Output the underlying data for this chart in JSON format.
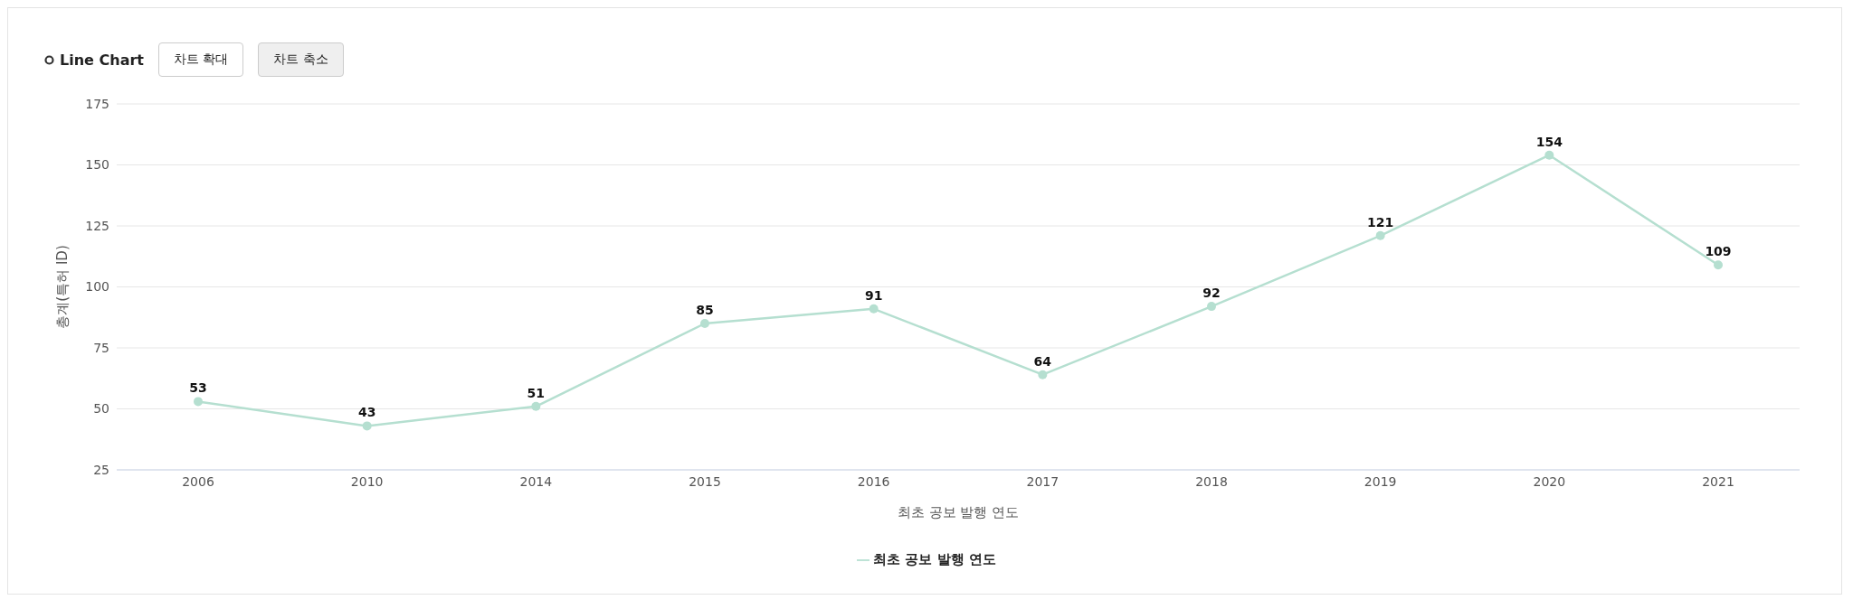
{
  "chart_data": {
    "type": "line",
    "title": "Line Chart",
    "annotations": [
      "차트 확대",
      "차트 축소"
    ],
    "xlabel": "최초 공보 발행 연도",
    "ylabel": "총계(특허 ID)",
    "categories": [
      "2006",
      "2010",
      "2014",
      "2015",
      "2016",
      "2017",
      "2018",
      "2019",
      "2020",
      "2021"
    ],
    "series": [
      {
        "name": "최초 공보 발행 연도",
        "color": "#b5dfd0",
        "values": [
          53,
          43,
          51,
          85,
          91,
          64,
          92,
          121,
          154,
          109
        ]
      }
    ],
    "ylim": [
      25,
      175
    ],
    "yticks": [
      25,
      50,
      75,
      100,
      125,
      150,
      175
    ],
    "grid": "y",
    "legend": "bottom",
    "marker": "circle",
    "line_style": "solid",
    "data_labels": true
  }
}
